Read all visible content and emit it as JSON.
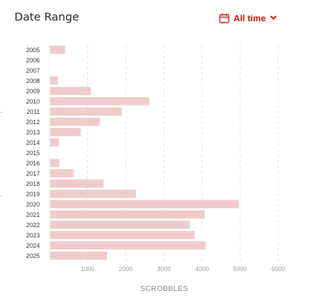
{
  "header": {
    "title": "Date Range",
    "range_label": "All time",
    "accent": "#d51007"
  },
  "chart_data": {
    "type": "bar",
    "orientation": "horizontal",
    "categories": [
      "2005",
      "2006",
      "2007",
      "2008",
      "2009",
      "2010",
      "2011",
      "2012",
      "2013",
      "2014",
      "2015",
      "2016",
      "2017",
      "2018",
      "2019",
      "2020",
      "2021",
      "2022",
      "2023",
      "2024",
      "2025"
    ],
    "values": [
      390,
      0,
      0,
      200,
      1070,
      2600,
      1880,
      1300,
      800,
      230,
      0,
      240,
      620,
      1400,
      2250,
      4950,
      4050,
      3660,
      3790,
      4080,
      1490
    ],
    "xticks": [
      "1000",
      "2000",
      "3000",
      "4000",
      "5000",
      "6000"
    ],
    "xlim": [
      0,
      6000
    ],
    "xlabel": "SCROBBLES",
    "bar_color": "#efcbcb",
    "grid": "vertical dashed"
  }
}
